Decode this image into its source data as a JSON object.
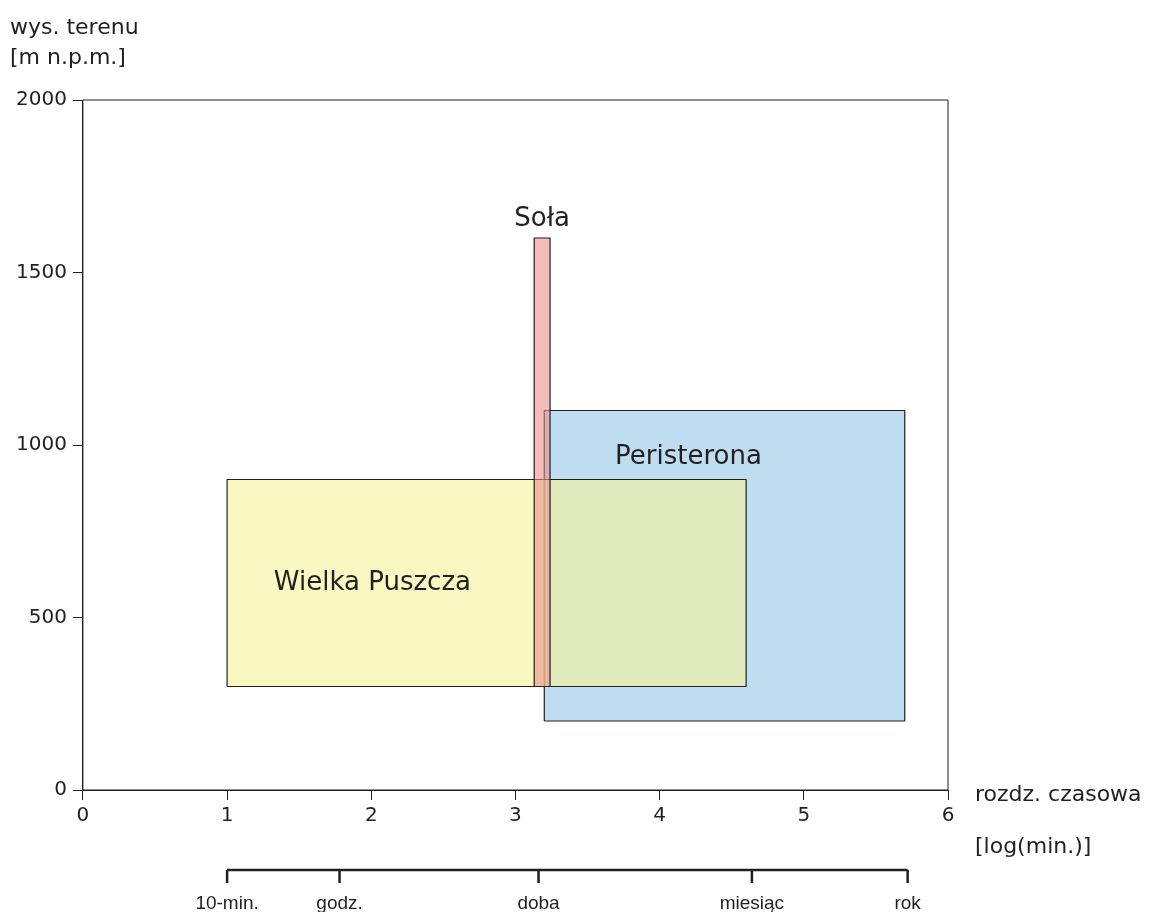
{
  "chart_data": {
    "type": "area",
    "xlabel": "rozdz. czasowa [log(min.)]",
    "ylabel": "wys. terenu [m n.p.m.]",
    "xlim": [
      0,
      6
    ],
    "xticks": [
      0,
      1,
      2,
      3,
      4,
      5,
      6
    ],
    "ylim": [
      0,
      2000
    ],
    "yticks": [
      0,
      500,
      1000,
      1500,
      2000
    ],
    "ref_lines": [
      {
        "axis": "x",
        "value": 1,
        "label": "10-min."
      },
      {
        "axis": "x",
        "value": 1.78,
        "label": "godz."
      },
      {
        "axis": "x",
        "value": 3.16,
        "label": "doba"
      },
      {
        "axis": "x",
        "value": 4.64,
        "label": "miesiąc"
      },
      {
        "axis": "x",
        "value": 5.72,
        "label": "rok"
      }
    ],
    "series": [
      {
        "name": "Peristerona",
        "color": "#93c7e6",
        "x": [
          3.2,
          3.2,
          5.7,
          5.7,
          3.2
        ],
        "values": [
          200,
          1100,
          1100,
          200,
          200
        ]
      },
      {
        "name": "Wielka Puszcza",
        "color": "#f7f39a",
        "x": [
          1,
          1,
          4.6,
          4.6,
          1
        ],
        "values": [
          300,
          900,
          900,
          300,
          300
        ]
      },
      {
        "name": "Soła",
        "color": "#e8908a",
        "x": [
          3.13,
          3.13,
          3.24,
          3.24,
          3.13
        ],
        "values": [
          300,
          1600,
          1600,
          300,
          300
        ]
      }
    ],
    "grid": false,
    "legend": false,
    "marker": "none"
  }
}
